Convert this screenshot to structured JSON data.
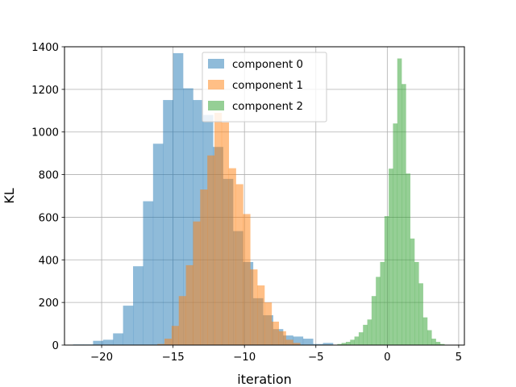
{
  "chart_data": {
    "type": "bar",
    "subtype": "histogram-overlay",
    "title": "",
    "xlabel": "iteration",
    "ylabel": "KL",
    "xlim": [
      -22.6,
      5.4
    ],
    "ylim": [
      0,
      1400
    ],
    "xticks": [
      -20,
      -15,
      -10,
      -5,
      0,
      5
    ],
    "yticks": [
      0,
      200,
      400,
      600,
      800,
      1000,
      1200,
      1400
    ],
    "grid": true,
    "legend_position": "top-center",
    "series": [
      {
        "name": "component 0",
        "color": "#1f77b4",
        "alpha": 0.5,
        "bins": [
          {
            "x0": -22.0,
            "x1": -21.3,
            "count": 3
          },
          {
            "x0": -21.3,
            "x1": -20.6,
            "count": 3
          },
          {
            "x0": -20.6,
            "x1": -19.9,
            "count": 20
          },
          {
            "x0": -19.9,
            "x1": -19.2,
            "count": 25
          },
          {
            "x0": -19.2,
            "x1": -18.5,
            "count": 55
          },
          {
            "x0": -18.5,
            "x1": -17.8,
            "count": 185
          },
          {
            "x0": -17.8,
            "x1": -17.1,
            "count": 370
          },
          {
            "x0": -17.1,
            "x1": -16.4,
            "count": 675
          },
          {
            "x0": -16.4,
            "x1": -15.7,
            "count": 945
          },
          {
            "x0": -15.7,
            "x1": -15.0,
            "count": 1150
          },
          {
            "x0": -15.0,
            "x1": -14.3,
            "count": 1370
          },
          {
            "x0": -14.3,
            "x1": -13.6,
            "count": 1205
          },
          {
            "x0": -13.6,
            "x1": -12.9,
            "count": 1150
          },
          {
            "x0": -12.9,
            "x1": -12.2,
            "count": 1080
          },
          {
            "x0": -12.2,
            "x1": -11.5,
            "count": 930
          },
          {
            "x0": -11.5,
            "x1": -10.8,
            "count": 780
          },
          {
            "x0": -10.8,
            "x1": -10.1,
            "count": 535
          },
          {
            "x0": -10.1,
            "x1": -9.4,
            "count": 390
          },
          {
            "x0": -9.4,
            "x1": -8.7,
            "count": 220
          },
          {
            "x0": -8.7,
            "x1": -8.0,
            "count": 140
          },
          {
            "x0": -8.0,
            "x1": -7.3,
            "count": 75
          },
          {
            "x0": -7.3,
            "x1": -6.6,
            "count": 45
          },
          {
            "x0": -6.6,
            "x1": -5.9,
            "count": 40
          },
          {
            "x0": -5.9,
            "x1": -5.2,
            "count": 30
          },
          {
            "x0": -5.2,
            "x1": -4.5,
            "count": 5
          },
          {
            "x0": -4.5,
            "x1": -3.8,
            "count": 10
          },
          {
            "x0": -3.8,
            "x1": -3.1,
            "count": 2
          }
        ]
      },
      {
        "name": "component 1",
        "color": "#ff7f0e",
        "alpha": 0.5,
        "bins": [
          {
            "x0": -16.1,
            "x1": -15.6,
            "count": 5
          },
          {
            "x0": -15.6,
            "x1": -15.1,
            "count": 30
          },
          {
            "x0": -15.1,
            "x1": -14.6,
            "count": 90
          },
          {
            "x0": -14.6,
            "x1": -14.1,
            "count": 230
          },
          {
            "x0": -14.1,
            "x1": -13.6,
            "count": 375
          },
          {
            "x0": -13.6,
            "x1": -13.1,
            "count": 580
          },
          {
            "x0": -13.1,
            "x1": -12.6,
            "count": 730
          },
          {
            "x0": -12.6,
            "x1": -12.1,
            "count": 890
          },
          {
            "x0": -12.1,
            "x1": -11.6,
            "count": 1090
          },
          {
            "x0": -11.6,
            "x1": -11.1,
            "count": 1045
          },
          {
            "x0": -11.1,
            "x1": -10.6,
            "count": 830
          },
          {
            "x0": -10.6,
            "x1": -10.1,
            "count": 755
          },
          {
            "x0": -10.1,
            "x1": -9.6,
            "count": 615
          },
          {
            "x0": -9.6,
            "x1": -9.1,
            "count": 355
          },
          {
            "x0": -9.1,
            "x1": -8.6,
            "count": 280
          },
          {
            "x0": -8.6,
            "x1": -8.1,
            "count": 200
          },
          {
            "x0": -8.1,
            "x1": -7.6,
            "count": 110
          },
          {
            "x0": -7.6,
            "x1": -7.1,
            "count": 65
          },
          {
            "x0": -7.1,
            "x1": -6.6,
            "count": 25
          },
          {
            "x0": -6.6,
            "x1": -6.1,
            "count": 10
          }
        ]
      },
      {
        "name": "component 2",
        "color": "#2ca02c",
        "alpha": 0.5,
        "bins": [
          {
            "x0": -3.5,
            "x1": -3.2,
            "count": 5
          },
          {
            "x0": -3.2,
            "x1": -2.9,
            "count": 10
          },
          {
            "x0": -2.9,
            "x1": -2.6,
            "count": 15
          },
          {
            "x0": -2.6,
            "x1": -2.3,
            "count": 25
          },
          {
            "x0": -2.3,
            "x1": -2.0,
            "count": 40
          },
          {
            "x0": -2.0,
            "x1": -1.7,
            "count": 60
          },
          {
            "x0": -1.7,
            "x1": -1.4,
            "count": 95
          },
          {
            "x0": -1.4,
            "x1": -1.1,
            "count": 120
          },
          {
            "x0": -1.1,
            "x1": -0.8,
            "count": 230
          },
          {
            "x0": -0.8,
            "x1": -0.5,
            "count": 320
          },
          {
            "x0": -0.5,
            "x1": -0.2,
            "count": 390
          },
          {
            "x0": -0.2,
            "x1": 0.1,
            "count": 605
          },
          {
            "x0": 0.1,
            "x1": 0.4,
            "count": 828
          },
          {
            "x0": 0.4,
            "x1": 0.7,
            "count": 1040
          },
          {
            "x0": 0.7,
            "x1": 1.0,
            "count": 1345
          },
          {
            "x0": 1.0,
            "x1": 1.3,
            "count": 1225
          },
          {
            "x0": 1.3,
            "x1": 1.6,
            "count": 805
          },
          {
            "x0": 1.6,
            "x1": 1.9,
            "count": 500
          },
          {
            "x0": 1.9,
            "x1": 2.2,
            "count": 390
          },
          {
            "x0": 2.2,
            "x1": 2.5,
            "count": 290
          },
          {
            "x0": 2.5,
            "x1": 2.8,
            "count": 130
          },
          {
            "x0": 2.8,
            "x1": 3.1,
            "count": 70
          },
          {
            "x0": 3.1,
            "x1": 3.4,
            "count": 30
          },
          {
            "x0": 3.4,
            "x1": 3.7,
            "count": 15
          },
          {
            "x0": 3.7,
            "x1": 4.0,
            "count": 5
          }
        ]
      }
    ]
  }
}
